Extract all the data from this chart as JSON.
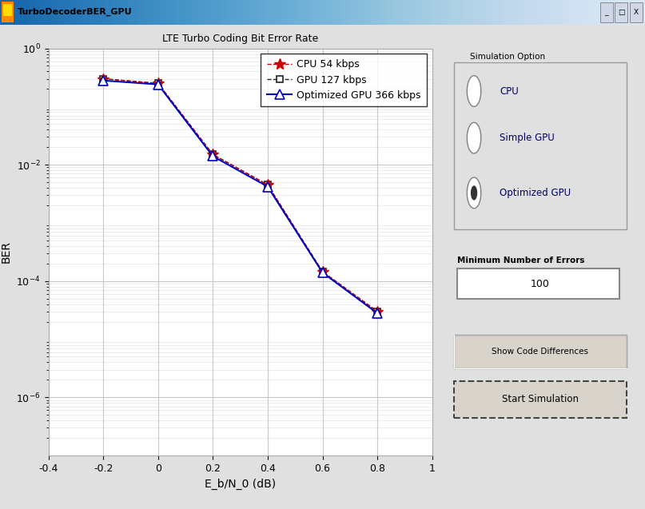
{
  "title": "LTE Turbo Coding Bit Error Rate",
  "xlabel": "E_b/N_0 (dB)",
  "ylabel": "BER",
  "window_title": "TurboDecoderBER_GPU",
  "x_data": [
    -0.2,
    0.0,
    0.2,
    0.4,
    0.6,
    0.8
  ],
  "ber_cpu": [
    0.3,
    0.25,
    0.015,
    0.0045,
    0.000145,
    3e-05
  ],
  "ber_gpu": [
    0.3,
    0.25,
    0.015,
    0.0045,
    0.000145,
    3e-05
  ],
  "ber_opt": [
    0.28,
    0.24,
    0.014,
    0.0042,
    0.00014,
    2.8e-05
  ],
  "xlim": [
    -0.4,
    1.0
  ],
  "ylim": [
    1e-07,
    1.0
  ],
  "bg_color": "#e0e0e0",
  "plot_bg": "#ffffff",
  "grid_color": "#c8c8c8",
  "cpu_color": "#cc0000",
  "gpu_color": "#222222",
  "opt_color": "#0000bb",
  "legend_labels": [
    "CPU 54 kbps",
    "GPU 127 kbps",
    "Optimized GPU 366 kbps"
  ],
  "panel_title": "Simulation Option",
  "radio_options": [
    "CPU",
    "Simple GPU",
    "Optimized GPU"
  ],
  "selected_radio": 2,
  "min_errors_label": "Minimum Number of Errors",
  "min_errors_value": "100",
  "btn1_label": "Show Code Differences",
  "btn2_label": "Start Simulation",
  "title_fontsize": 9,
  "axis_label_fontsize": 10,
  "tick_fontsize": 9,
  "legend_fontsize": 9,
  "titlebar_grad_left": "#5080c0",
  "titlebar_grad_right": "#a8c4e8",
  "titlebar_text_color": "#000000"
}
